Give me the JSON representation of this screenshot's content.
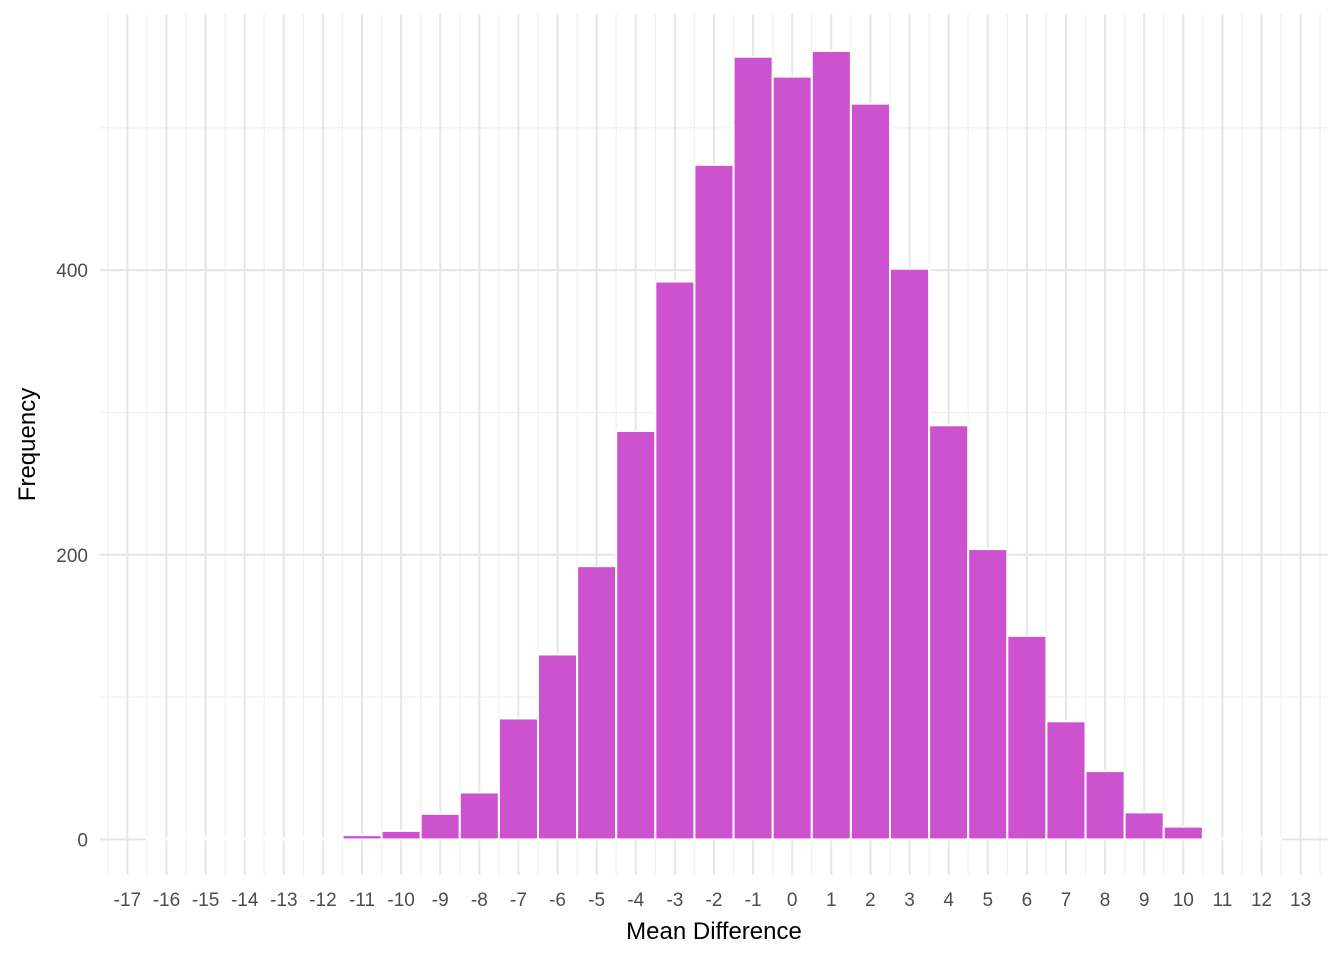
{
  "chart_data": {
    "type": "bar",
    "title": "",
    "xlabel": "Mean Difference",
    "ylabel": "Frequency",
    "x_ticks": [
      "-17",
      "-16",
      "-15",
      "-14",
      "-13",
      "-12",
      "-11",
      "-10",
      "-9",
      "-8",
      "-7",
      "-6",
      "-5",
      "-4",
      "-3",
      "-2",
      "-1",
      "0",
      "1",
      "2",
      "3",
      "4",
      "5",
      "6",
      "7",
      "8",
      "9",
      "10",
      "11",
      "12",
      "13"
    ],
    "y_ticks": [
      "0",
      "200",
      "400"
    ],
    "xlim": [
      -17.7,
      13.7
    ],
    "ylim": [
      -25,
      580
    ],
    "grid": true,
    "bar_color": "#cc52cf",
    "bins": [
      {
        "x0": -16.5,
        "x1": -15.5,
        "count": 1
      },
      {
        "x0": -15.5,
        "x1": -14.5,
        "count": 1
      },
      {
        "x0": -14.5,
        "x1": -13.5,
        "count": 1
      },
      {
        "x0": -13.5,
        "x1": -12.5,
        "count": 1
      },
      {
        "x0": -12.5,
        "x1": -11.5,
        "count": 1
      },
      {
        "x0": -11.5,
        "x1": -10.5,
        "count": 3
      },
      {
        "x0": -10.5,
        "x1": -9.5,
        "count": 6
      },
      {
        "x0": -9.5,
        "x1": -8.5,
        "count": 18
      },
      {
        "x0": -8.5,
        "x1": -7.5,
        "count": 33
      },
      {
        "x0": -7.5,
        "x1": -6.5,
        "count": 85
      },
      {
        "x0": -6.5,
        "x1": -5.5,
        "count": 130
      },
      {
        "x0": -5.5,
        "x1": -4.5,
        "count": 192
      },
      {
        "x0": -4.5,
        "x1": -3.5,
        "count": 287
      },
      {
        "x0": -3.5,
        "x1": -2.5,
        "count": 392
      },
      {
        "x0": -2.5,
        "x1": -1.5,
        "count": 474
      },
      {
        "x0": -1.5,
        "x1": -0.5,
        "count": 550
      },
      {
        "x0": -0.5,
        "x1": 0.5,
        "count": 536
      },
      {
        "x0": 0.5,
        "x1": 1.5,
        "count": 554
      },
      {
        "x0": 1.5,
        "x1": 2.5,
        "count": 517
      },
      {
        "x0": 2.5,
        "x1": 3.5,
        "count": 401
      },
      {
        "x0": 3.5,
        "x1": 4.5,
        "count": 291
      },
      {
        "x0": 4.5,
        "x1": 5.5,
        "count": 204
      },
      {
        "x0": 5.5,
        "x1": 6.5,
        "count": 143
      },
      {
        "x0": 6.5,
        "x1": 7.5,
        "count": 83
      },
      {
        "x0": 7.5,
        "x1": 8.5,
        "count": 48
      },
      {
        "x0": 8.5,
        "x1": 9.5,
        "count": 19
      },
      {
        "x0": 9.5,
        "x1": 10.5,
        "count": 9
      },
      {
        "x0": 10.5,
        "x1": 11.5,
        "count": 1
      },
      {
        "x0": 11.5,
        "x1": 12.5,
        "count": 1
      }
    ]
  }
}
